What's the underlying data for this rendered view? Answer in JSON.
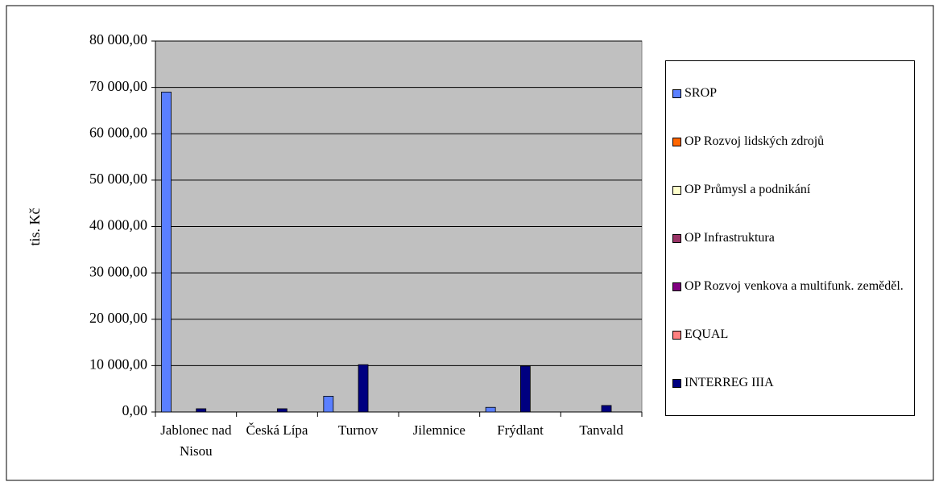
{
  "chart_data": {
    "type": "bar",
    "y_label": "tis. Kč",
    "categories": [
      "Jablonec nad Nisou",
      "Česká Lípa",
      "Turnov",
      "Jilemnice",
      "Frýdlant",
      "Tanvald"
    ],
    "series": [
      {
        "name": "SROP",
        "color": "#5a7fff",
        "values": [
          69000,
          0,
          3400,
          0,
          1000,
          0
        ]
      },
      {
        "name": "OP Rozvoj lidských zdrojů",
        "color": "#ff6600",
        "values": [
          0,
          0,
          0,
          0,
          0,
          0
        ]
      },
      {
        "name": "OP Průmysl a podnikání",
        "color": "#ffffcc",
        "values": [
          0,
          0,
          0,
          0,
          0,
          0
        ]
      },
      {
        "name": "OP Infrastruktura",
        "color": "#993366",
        "values": [
          0,
          0,
          0,
          0,
          0,
          0
        ]
      },
      {
        "name": "OP Rozvoj venkova a multifunk. zeměděl.",
        "color": "#800080",
        "values": [
          0,
          0,
          0,
          0,
          0,
          0
        ]
      },
      {
        "name": "EQUAL",
        "color": "#ff8080",
        "values": [
          0,
          0,
          0,
          0,
          0,
          0
        ]
      },
      {
        "name": "INTERREG IIIA",
        "color": "#000080",
        "values": [
          700,
          700,
          10200,
          0,
          9900,
          1400
        ]
      }
    ],
    "ylim": [
      0,
      80000
    ],
    "yticks": [
      {
        "value": 0,
        "label": "0,00"
      },
      {
        "value": 10000,
        "label": "10 000,00"
      },
      {
        "value": 20000,
        "label": "20 000,00"
      },
      {
        "value": 30000,
        "label": "30 000,00"
      },
      {
        "value": 40000,
        "label": "40 000,00"
      },
      {
        "value": 50000,
        "label": "50 000,00"
      },
      {
        "value": 60000,
        "label": "60 000,00"
      },
      {
        "value": 70000,
        "label": "70 000,00"
      },
      {
        "value": 80000,
        "label": "80 000,00"
      }
    ],
    "grid": true,
    "plot_background": "#c0c0c0",
    "legend": "right"
  }
}
